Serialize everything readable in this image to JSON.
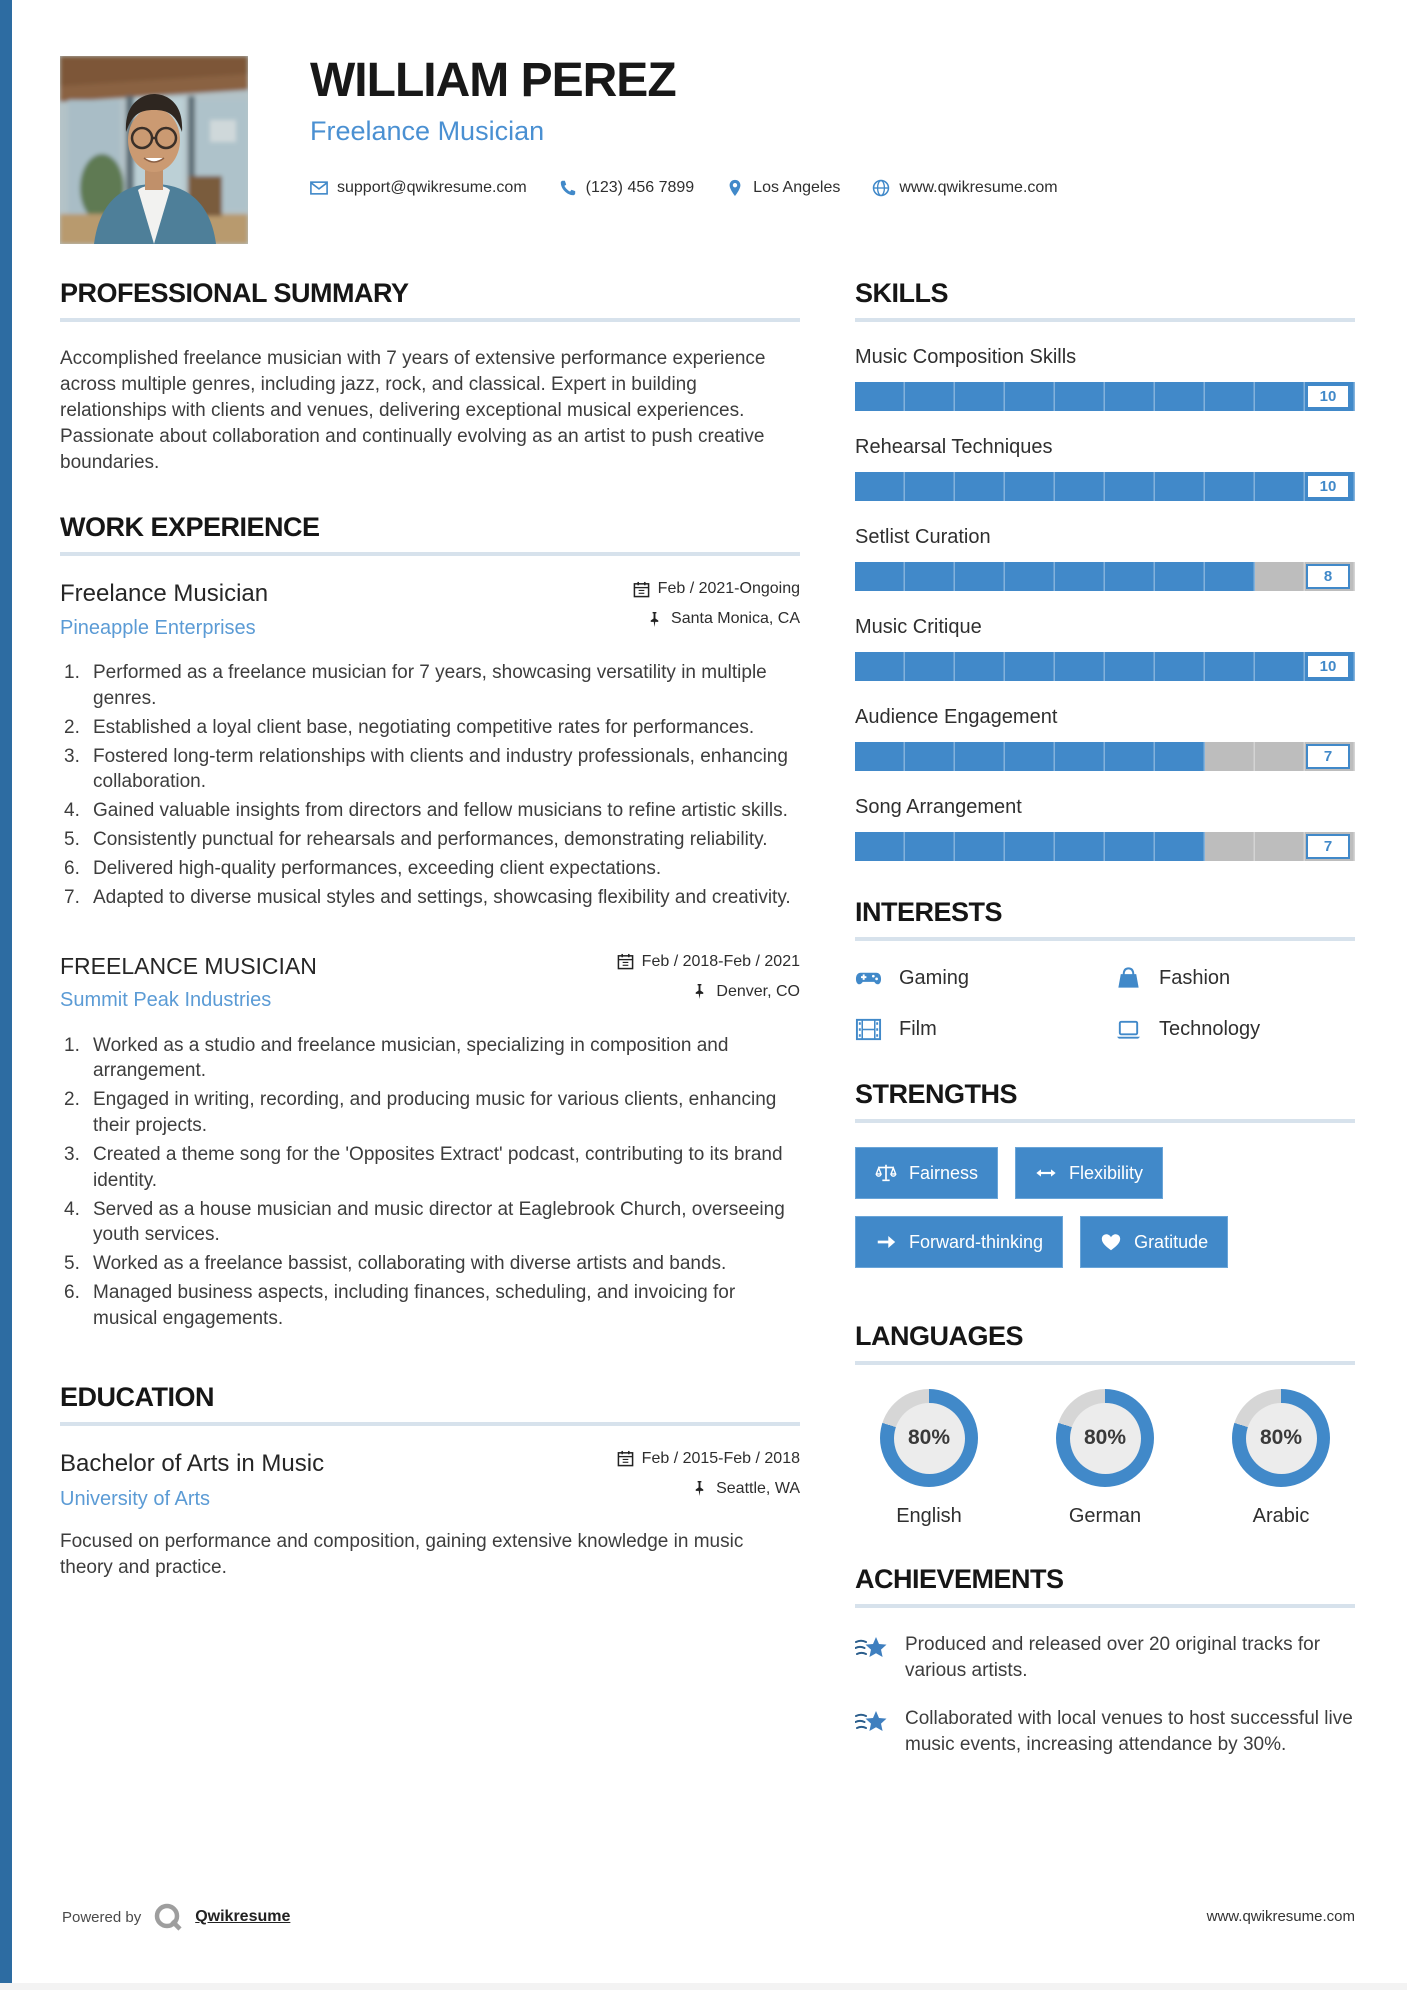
{
  "header": {
    "name": "WILLIAM PEREZ",
    "title": "Freelance Musician",
    "email": "support@qwikresume.com",
    "phone": "(123) 456 7899",
    "location": "Los Angeles",
    "website": "www.qwikresume.com"
  },
  "summary": {
    "heading": "PROFESSIONAL SUMMARY",
    "text": "Accomplished freelance musician with 7 years of extensive performance experience across multiple genres, including jazz, rock, and classical. Expert in building relationships with clients and venues, delivering exceptional musical experiences. Passionate about collaboration and continually evolving as an artist to push creative boundaries."
  },
  "work": {
    "heading": "WORK EXPERIENCE",
    "jobs": [
      {
        "title": "Freelance Musician",
        "company": "Pineapple Enterprises",
        "dates": "Feb / 2021-Ongoing",
        "location": "Santa Monica, CA",
        "bullets": [
          "Performed as a freelance musician for 7 years, showcasing versatility in multiple genres.",
          "Established a loyal client base, negotiating competitive rates for performances.",
          "Fostered long-term relationships with clients and industry professionals, enhancing collaboration.",
          "Gained valuable insights from directors and fellow musicians to refine artistic skills.",
          "Consistently punctual for rehearsals and performances, demonstrating reliability.",
          "Delivered high-quality performances, exceeding client expectations.",
          "Adapted to diverse musical styles and settings, showcasing flexibility and creativity."
        ]
      },
      {
        "title": "FREELANCE MUSICIAN",
        "company": "Summit Peak Industries",
        "dates": "Feb / 2018-Feb / 2021",
        "location": "Denver, CO",
        "bullets": [
          "Worked as a studio and freelance musician, specializing in composition and arrangement.",
          "Engaged in writing, recording, and producing music for various clients, enhancing their projects.",
          "Created a theme song for the 'Opposites Extract' podcast, contributing to its brand identity.",
          "Served as a house musician and music director at Eaglebrook Church, overseeing youth services.",
          "Worked as a freelance bassist, collaborating with diverse artists and bands.",
          "Managed business aspects, including finances, scheduling, and invoicing for musical engagements."
        ]
      }
    ]
  },
  "education": {
    "heading": "EDUCATION",
    "degree": "Bachelor of Arts in Music",
    "school": "University of Arts",
    "dates": "Feb / 2015-Feb / 2018",
    "location": "Seattle, WA",
    "description": "Focused on performance and composition, gaining extensive knowledge in music theory and practice."
  },
  "skills": {
    "heading": "SKILLS",
    "items": [
      {
        "name": "Music Composition Skills",
        "score": 10
      },
      {
        "name": "Rehearsal Techniques",
        "score": 10
      },
      {
        "name": "Setlist Curation",
        "score": 8
      },
      {
        "name": "Music Critique",
        "score": 10
      },
      {
        "name": "Audience Engagement",
        "score": 7
      },
      {
        "name": "Song Arrangement",
        "score": 7
      }
    ]
  },
  "interests": {
    "heading": "INTERESTS",
    "items": [
      {
        "label": "Gaming",
        "icon": "gamepad-icon"
      },
      {
        "label": "Fashion",
        "icon": "handbag-icon"
      },
      {
        "label": "Film",
        "icon": "film-icon"
      },
      {
        "label": "Technology",
        "icon": "laptop-icon"
      }
    ]
  },
  "strengths": {
    "heading": "STRENGTHS",
    "items": [
      {
        "label": "Fairness",
        "icon": "scales-icon"
      },
      {
        "label": "Flexibility",
        "icon": "left-right-arrow-icon"
      },
      {
        "label": "Forward-thinking",
        "icon": "right-arrow-icon"
      },
      {
        "label": "Gratitude",
        "icon": "heart-icon"
      }
    ]
  },
  "languages": {
    "heading": "LANGUAGES",
    "items": [
      {
        "name": "English",
        "percent": 80,
        "percent_label": "80%"
      },
      {
        "name": "German",
        "percent": 80,
        "percent_label": "80%"
      },
      {
        "name": "Arabic",
        "percent": 80,
        "percent_label": "80%"
      }
    ]
  },
  "achievements": {
    "heading": "ACHIEVEMENTS",
    "items": [
      "Produced and released over 20 original tracks for various artists.",
      "Collaborated with local venues to host successful live music events, increasing attendance by 30%."
    ]
  },
  "footer": {
    "powered_by": "Powered by",
    "brand": "Qwikresume",
    "website": "www.qwikresume.com"
  },
  "colors": {
    "accent": "#4189c9",
    "link": "#5b9bd5",
    "bar_rest": "#bdbdbd",
    "edge_strip": "#2d6ca2",
    "rule": "#d7e2ec"
  }
}
